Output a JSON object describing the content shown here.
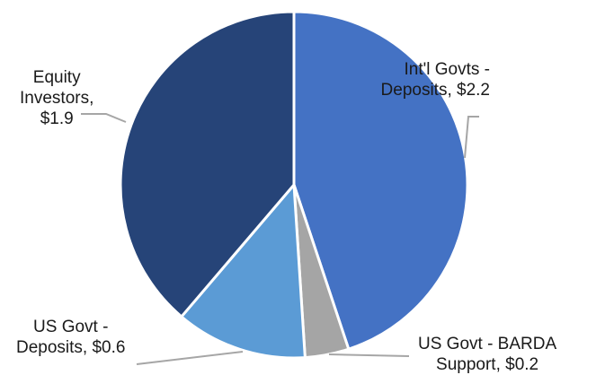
{
  "chart_data": {
    "type": "pie",
    "slices": [
      {
        "label": "Int'l Govts - Deposits",
        "lines": [
          "Int'l Govts -",
          "Deposits, $2.2"
        ],
        "value": 2.2,
        "color": "#4472c4"
      },
      {
        "label": "US Govt - BARDA Support",
        "lines": [
          "US Govt - BARDA",
          "Support, $0.2"
        ],
        "value": 0.2,
        "color": "#a5a5a5"
      },
      {
        "label": "US Govt - Deposits",
        "lines": [
          "US Govt -",
          "Deposits, $0.6"
        ],
        "value": 0.6,
        "color": "#5b9bd5"
      },
      {
        "label": "Equity Investors",
        "lines": [
          "Equity",
          "Investors,",
          "$1.9"
        ],
        "value": 1.9,
        "color": "#264478"
      }
    ],
    "start_angle_deg": 0,
    "direction": "clockwise",
    "legend": "none",
    "data_labels": "outside with leader lines"
  }
}
